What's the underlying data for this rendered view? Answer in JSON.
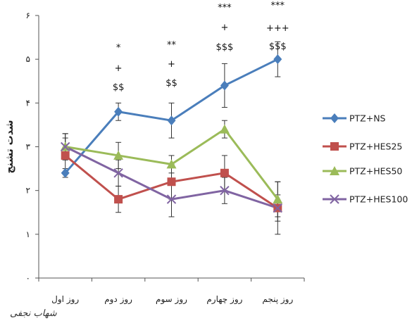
{
  "chart_data": {
    "type": "line",
    "title": "",
    "xlabel": "",
    "ylabel": "شدت تشنج",
    "ylim": [
      0,
      6
    ],
    "yticks": [
      "۰",
      "۱",
      "۲",
      "۳",
      "۴",
      "۵",
      "۶"
    ],
    "categories": [
      "روز اول",
      "روز دوم",
      "روز سوم",
      "روز چهارم",
      "روز پنجم"
    ],
    "grid": false,
    "legend_position": "right",
    "series": [
      {
        "name": "PTZ+NS",
        "color": "#4a7ebb",
        "marker": "diamond",
        "values": [
          2.4,
          3.8,
          3.6,
          4.4,
          5.0
        ],
        "errors": [
          0.1,
          0.2,
          0.4,
          0.5,
          0.4
        ]
      },
      {
        "name": "PTZ+HES25",
        "color": "#c0504d",
        "marker": "square",
        "values": [
          2.8,
          1.8,
          2.2,
          2.4,
          1.6
        ],
        "errors": [
          0.4,
          0.3,
          0.4,
          0.4,
          0.3
        ]
      },
      {
        "name": "PTZ+HES50",
        "color": "#9bbb59",
        "marker": "triangle",
        "values": [
          3.0,
          2.8,
          2.6,
          3.4,
          1.8
        ],
        "errors": [
          0.3,
          0.3,
          0.2,
          0.2,
          0.4
        ]
      },
      {
        "name": "PTZ+HES100",
        "color": "#8064a2",
        "marker": "x",
        "values": [
          3.0,
          2.4,
          1.8,
          2.0,
          1.6
        ],
        "errors": [
          0.3,
          0.3,
          0.4,
          0.3,
          0.6
        ]
      }
    ],
    "annotations": [
      {
        "category": "روز دوم",
        "lines": [
          "*",
          "+",
          "$$"
        ]
      },
      {
        "category": "روز سوم",
        "lines": [
          "**",
          "+",
          "$$"
        ]
      },
      {
        "category": "روز چهارم",
        "lines": [
          "***",
          "+",
          "$$$"
        ]
      },
      {
        "category": "روز پنجم",
        "lines": [
          "***",
          "+++",
          "$$$"
        ]
      }
    ]
  },
  "signature": "شهاب نجفی"
}
